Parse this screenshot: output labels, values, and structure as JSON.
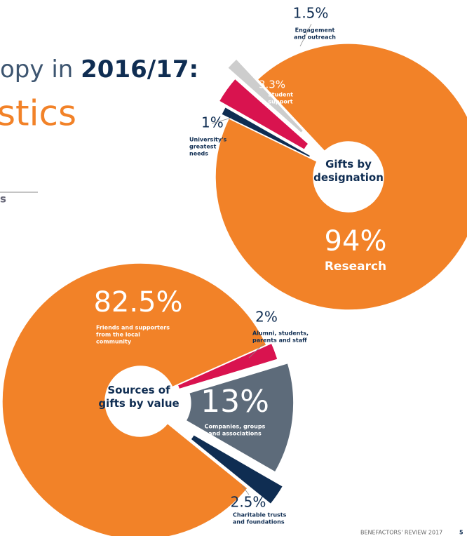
{
  "header": {
    "title_start": "opy in ",
    "title_year": "2016/17:",
    "subtitle": "stics",
    "side_text": "s"
  },
  "footer": {
    "text": "BENEFACTORS' REVIEW 2017",
    "page": "5"
  },
  "chart_data": [
    {
      "type": "pie",
      "title": [
        "Gifts by",
        "designation"
      ],
      "categories": [
        [
          "University's",
          "greatest",
          "needs"
        ],
        [
          "Student",
          "support"
        ],
        [
          "Engagement",
          "and outreach"
        ],
        [
          "Research"
        ]
      ],
      "values": [
        1,
        3.3,
        1.5,
        94
      ],
      "value_labels": [
        "1%",
        "3.3%",
        "1.5%",
        "94%"
      ],
      "colors": [
        "#0f2d52",
        "#d9134f",
        "#cdcdcd",
        "#f28228"
      ]
    },
    {
      "type": "pie",
      "title": [
        "Sources of",
        "gifts by value"
      ],
      "categories": [
        [
          "Alumni, students,",
          "parents and staff"
        ],
        [
          "Companies, groups",
          "and associations"
        ],
        [
          "Charitable trusts",
          "and foundations"
        ],
        [
          "Friends and supporters",
          "from the local",
          "community"
        ]
      ],
      "values": [
        2,
        13,
        2.5,
        82.5
      ],
      "value_labels": [
        "2%",
        "13%",
        "2.5%",
        "82.5%"
      ],
      "colors": [
        "#d9134f",
        "#5d6b7a",
        "#0f2d52",
        "#f28228"
      ]
    }
  ]
}
